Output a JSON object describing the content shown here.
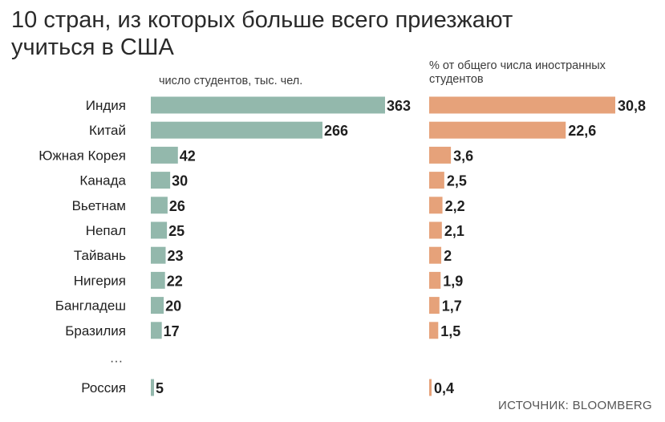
{
  "title": "10 стран, из которых больше всего приезжают учиться в США",
  "source": "ИСТОЧНИК: BLOOMBERG",
  "colors": {
    "students_bar": "#93b8ac",
    "percent_bar": "#e6a27a"
  },
  "chart_data": {
    "type": "bar",
    "orientation": "horizontal",
    "title": "10 стран, из которых больше всего приезжают учиться в США",
    "categories": [
      "Индия",
      "Китай",
      "Южная Корея",
      "Канада",
      "Вьетнам",
      "Непал",
      "Тайвань",
      "Нигерия",
      "Бангладеш",
      "Бразилия",
      "Россия"
    ],
    "gap_marker": "…",
    "gap_before_index": 10,
    "series": [
      {
        "name": "число студентов, тыс. чел.",
        "values": [
          363,
          266,
          42,
          30,
          26,
          25,
          23,
          22,
          20,
          17,
          5
        ],
        "labels": [
          "363",
          "266",
          "42",
          "30",
          "26",
          "25",
          "23",
          "22",
          "20",
          "17",
          "5"
        ],
        "xlim": [
          0,
          363
        ]
      },
      {
        "name": "% от общего числа иностранных студентов",
        "values": [
          30.8,
          22.6,
          3.6,
          2.5,
          2.2,
          2.1,
          2,
          1.9,
          1.7,
          1.5,
          0.4
        ],
        "labels": [
          "30,8",
          "22,6",
          "3,6",
          "2,5",
          "2,2",
          "2,1",
          "2",
          "1,9",
          "1,7",
          "1,5",
          "0,4"
        ],
        "xlim": [
          0,
          30.8
        ]
      }
    ]
  }
}
